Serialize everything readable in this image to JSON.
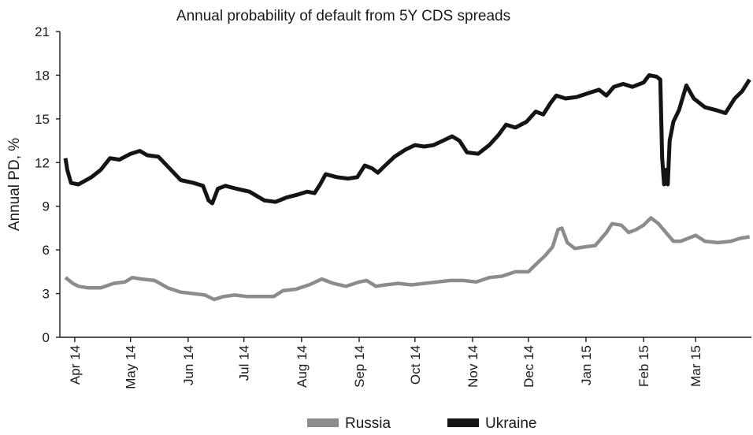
{
  "chart_data": {
    "type": "line",
    "title": "Annual probability of default from 5Y CDS spreads",
    "xlabel": "",
    "ylabel": "Annual PD, %",
    "ylim": [
      0,
      21
    ],
    "yticks": [
      "0",
      "3",
      "6",
      "9",
      "12",
      "15",
      "18",
      "21"
    ],
    "xlim": [
      "2014-03-24",
      "2015-03-31"
    ],
    "xticks": [
      {
        "date": "2014-04-01",
        "label": "Apr 14"
      },
      {
        "date": "2014-05-01",
        "label": "May 14"
      },
      {
        "date": "2014-06-01",
        "label": "Jun 14"
      },
      {
        "date": "2014-07-01",
        "label": "Jul 14"
      },
      {
        "date": "2014-08-01",
        "label": "Aug 14"
      },
      {
        "date": "2014-09-01",
        "label": "Sep 14"
      },
      {
        "date": "2014-10-01",
        "label": "Oct 14"
      },
      {
        "date": "2014-11-01",
        "label": "Nov 14"
      },
      {
        "date": "2014-12-01",
        "label": "Dec 14"
      },
      {
        "date": "2015-01-01",
        "label": "Jan 15"
      },
      {
        "date": "2015-02-01",
        "label": "Feb 15"
      },
      {
        "date": "2015-03-01",
        "label": "Mar 15"
      }
    ],
    "grid": false,
    "legend_position": "bottom",
    "series": [
      {
        "name": "Russia",
        "color": "#8c8c8c",
        "points": [
          [
            "2014-03-27",
            4.1
          ],
          [
            "2014-03-31",
            3.7
          ],
          [
            "2014-04-03",
            3.5
          ],
          [
            "2014-04-08",
            3.4
          ],
          [
            "2014-04-15",
            3.4
          ],
          [
            "2014-04-22",
            3.7
          ],
          [
            "2014-04-28",
            3.8
          ],
          [
            "2014-05-02",
            4.1
          ],
          [
            "2014-05-07",
            4.0
          ],
          [
            "2014-05-14",
            3.9
          ],
          [
            "2014-05-21",
            3.4
          ],
          [
            "2014-05-28",
            3.1
          ],
          [
            "2014-06-04",
            3.0
          ],
          [
            "2014-06-10",
            2.9
          ],
          [
            "2014-06-15",
            2.6
          ],
          [
            "2014-06-20",
            2.8
          ],
          [
            "2014-06-26",
            2.9
          ],
          [
            "2014-07-03",
            2.8
          ],
          [
            "2014-07-10",
            2.8
          ],
          [
            "2014-07-17",
            2.8
          ],
          [
            "2014-07-22",
            3.2
          ],
          [
            "2014-07-29",
            3.3
          ],
          [
            "2014-08-05",
            3.6
          ],
          [
            "2014-08-12",
            4.0
          ],
          [
            "2014-08-18",
            3.7
          ],
          [
            "2014-08-25",
            3.5
          ],
          [
            "2014-09-01",
            3.8
          ],
          [
            "2014-09-05",
            3.9
          ],
          [
            "2014-09-10",
            3.5
          ],
          [
            "2014-09-15",
            3.6
          ],
          [
            "2014-09-22",
            3.7
          ],
          [
            "2014-09-29",
            3.6
          ],
          [
            "2014-10-06",
            3.7
          ],
          [
            "2014-10-13",
            3.8
          ],
          [
            "2014-10-20",
            3.9
          ],
          [
            "2014-10-27",
            3.9
          ],
          [
            "2014-11-03",
            3.8
          ],
          [
            "2014-11-10",
            4.1
          ],
          [
            "2014-11-17",
            4.2
          ],
          [
            "2014-11-24",
            4.5
          ],
          [
            "2014-12-01",
            4.5
          ],
          [
            "2014-12-05",
            5.0
          ],
          [
            "2014-12-10",
            5.6
          ],
          [
            "2014-12-14",
            6.2
          ],
          [
            "2014-12-17",
            7.4
          ],
          [
            "2014-12-19",
            7.5
          ],
          [
            "2014-12-22",
            6.5
          ],
          [
            "2014-12-26",
            6.1
          ],
          [
            "2014-12-31",
            6.2
          ],
          [
            "2015-01-06",
            6.3
          ],
          [
            "2015-01-12",
            7.2
          ],
          [
            "2015-01-15",
            7.8
          ],
          [
            "2015-01-20",
            7.7
          ],
          [
            "2015-01-24",
            7.2
          ],
          [
            "2015-01-28",
            7.4
          ],
          [
            "2015-02-01",
            7.7
          ],
          [
            "2015-02-05",
            8.2
          ],
          [
            "2015-02-09",
            7.8
          ],
          [
            "2015-02-13",
            7.2
          ],
          [
            "2015-02-17",
            6.6
          ],
          [
            "2015-02-21",
            6.6
          ],
          [
            "2015-02-25",
            6.8
          ],
          [
            "2015-03-01",
            7.0
          ],
          [
            "2015-03-06",
            6.6
          ],
          [
            "2015-03-13",
            6.5
          ],
          [
            "2015-03-20",
            6.6
          ],
          [
            "2015-03-25",
            6.8
          ],
          [
            "2015-03-30",
            6.9
          ]
        ]
      },
      {
        "name": "Ukraine",
        "color": "#141414",
        "points": [
          [
            "2014-03-27",
            12.3
          ],
          [
            "2014-03-28",
            11.5
          ],
          [
            "2014-03-30",
            10.6
          ],
          [
            "2014-04-03",
            10.5
          ],
          [
            "2014-04-10",
            11.0
          ],
          [
            "2014-04-15",
            11.5
          ],
          [
            "2014-04-20",
            12.3
          ],
          [
            "2014-04-25",
            12.2
          ],
          [
            "2014-05-01",
            12.6
          ],
          [
            "2014-05-06",
            12.8
          ],
          [
            "2014-05-10",
            12.5
          ],
          [
            "2014-05-16",
            12.4
          ],
          [
            "2014-05-22",
            11.6
          ],
          [
            "2014-05-28",
            10.8
          ],
          [
            "2014-06-04",
            10.6
          ],
          [
            "2014-06-09",
            10.4
          ],
          [
            "2014-06-12",
            9.4
          ],
          [
            "2014-06-14",
            9.2
          ],
          [
            "2014-06-17",
            10.2
          ],
          [
            "2014-06-21",
            10.4
          ],
          [
            "2014-06-27",
            10.2
          ],
          [
            "2014-07-04",
            10.0
          ],
          [
            "2014-07-08",
            9.7
          ],
          [
            "2014-07-12",
            9.4
          ],
          [
            "2014-07-18",
            9.3
          ],
          [
            "2014-07-24",
            9.6
          ],
          [
            "2014-07-30",
            9.8
          ],
          [
            "2014-08-04",
            10.0
          ],
          [
            "2014-08-08",
            9.9
          ],
          [
            "2014-08-11",
            10.5
          ],
          [
            "2014-08-14",
            11.2
          ],
          [
            "2014-08-20",
            11.0
          ],
          [
            "2014-08-26",
            10.9
          ],
          [
            "2014-08-31",
            11.0
          ],
          [
            "2014-09-04",
            11.8
          ],
          [
            "2014-09-08",
            11.6
          ],
          [
            "2014-09-11",
            11.3
          ],
          [
            "2014-09-15",
            11.8
          ],
          [
            "2014-09-20",
            12.4
          ],
          [
            "2014-09-26",
            12.9
          ],
          [
            "2014-10-01",
            13.2
          ],
          [
            "2014-10-06",
            13.1
          ],
          [
            "2014-10-11",
            13.2
          ],
          [
            "2014-10-16",
            13.5
          ],
          [
            "2014-10-21",
            13.8
          ],
          [
            "2014-10-25",
            13.5
          ],
          [
            "2014-10-29",
            12.7
          ],
          [
            "2014-11-04",
            12.6
          ],
          [
            "2014-11-10",
            13.2
          ],
          [
            "2014-11-15",
            13.9
          ],
          [
            "2014-11-19",
            14.6
          ],
          [
            "2014-11-24",
            14.4
          ],
          [
            "2014-11-30",
            14.8
          ],
          [
            "2014-12-05",
            15.5
          ],
          [
            "2014-12-09",
            15.3
          ],
          [
            "2014-12-13",
            16.1
          ],
          [
            "2014-12-16",
            16.6
          ],
          [
            "2014-12-21",
            16.4
          ],
          [
            "2014-12-27",
            16.5
          ],
          [
            "2015-01-03",
            16.8
          ],
          [
            "2015-01-08",
            17.0
          ],
          [
            "2015-01-12",
            16.6
          ],
          [
            "2015-01-16",
            17.2
          ],
          [
            "2015-01-21",
            17.4
          ],
          [
            "2015-01-26",
            17.2
          ],
          [
            "2015-02-01",
            17.5
          ],
          [
            "2015-02-04",
            18.0
          ],
          [
            "2015-02-08",
            17.9
          ],
          [
            "2015-02-10",
            17.7
          ],
          [
            "2015-02-11",
            12.3
          ],
          [
            "2015-02-12",
            10.5
          ],
          [
            "2015-02-13",
            11.5
          ],
          [
            "2015-02-14",
            10.5
          ],
          [
            "2015-02-15",
            13.5
          ],
          [
            "2015-02-17",
            14.8
          ],
          [
            "2015-02-20",
            15.6
          ],
          [
            "2015-02-24",
            17.3
          ],
          [
            "2015-02-28",
            16.4
          ],
          [
            "2015-03-06",
            15.8
          ],
          [
            "2015-03-12",
            15.6
          ],
          [
            "2015-03-17",
            15.4
          ],
          [
            "2015-03-22",
            16.4
          ],
          [
            "2015-03-26",
            16.9
          ],
          [
            "2015-03-30",
            17.7
          ]
        ]
      }
    ]
  }
}
